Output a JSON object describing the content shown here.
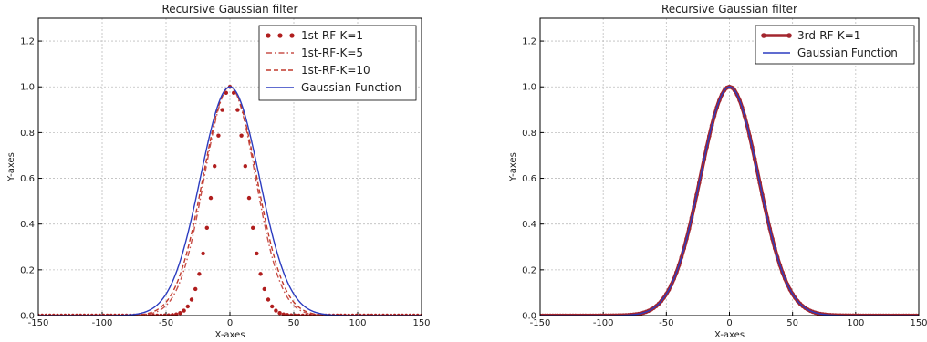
{
  "chart_data": [
    {
      "type": "line",
      "title": "Recursive Gaussian filter",
      "xlabel": "X-axes",
      "ylabel": "Y-axes",
      "xlim": [
        -150,
        150
      ],
      "ylim": [
        0,
        1.3
      ],
      "xticks": [
        "-150",
        "-100",
        "-50",
        "0",
        "50",
        "100",
        "150"
      ],
      "yticks": [
        "0.0",
        "0.2",
        "0.4",
        "0.6",
        "0.8",
        "1.0",
        "1.2"
      ],
      "grid": true,
      "legend_position": "top-right",
      "series": [
        {
          "name": "1st-RF-K=1",
          "style": "dots",
          "color": "#b01e1e",
          "sigma": 13,
          "peak": 1.0
        },
        {
          "name": "1st-RF-K=5",
          "style": "dashdot",
          "color": "#c8504a",
          "sigma": 20,
          "peak": 1.0
        },
        {
          "name": "1st-RF-K=10",
          "style": "dashed",
          "color": "#c0392b",
          "sigma": 21,
          "peak": 1.0
        },
        {
          "name": "Gaussian Function",
          "style": "solid",
          "color": "#2c3cc0",
          "sigma": 23,
          "peak": 1.0
        }
      ]
    },
    {
      "type": "line",
      "title": "Recursive Gaussian filter",
      "xlabel": "X-axes",
      "ylabel": "Y-axes",
      "xlim": [
        -150,
        150
      ],
      "ylim": [
        0,
        1.3
      ],
      "xticks": [
        "-150",
        "-100",
        "-50",
        "0",
        "50",
        "100",
        "150"
      ],
      "yticks": [
        "0.0",
        "0.2",
        "0.4",
        "0.6",
        "0.8",
        "1.0",
        "1.2"
      ],
      "grid": true,
      "legend_position": "top-right",
      "series": [
        {
          "name": "3rd-RF-K=1",
          "style": "thickdots",
          "color": "#a3262f",
          "sigma": 23,
          "peak": 1.0
        },
        {
          "name": "Gaussian Function",
          "style": "solid",
          "color": "#2c3cc0",
          "sigma": 23,
          "peak": 1.0
        }
      ]
    }
  ]
}
